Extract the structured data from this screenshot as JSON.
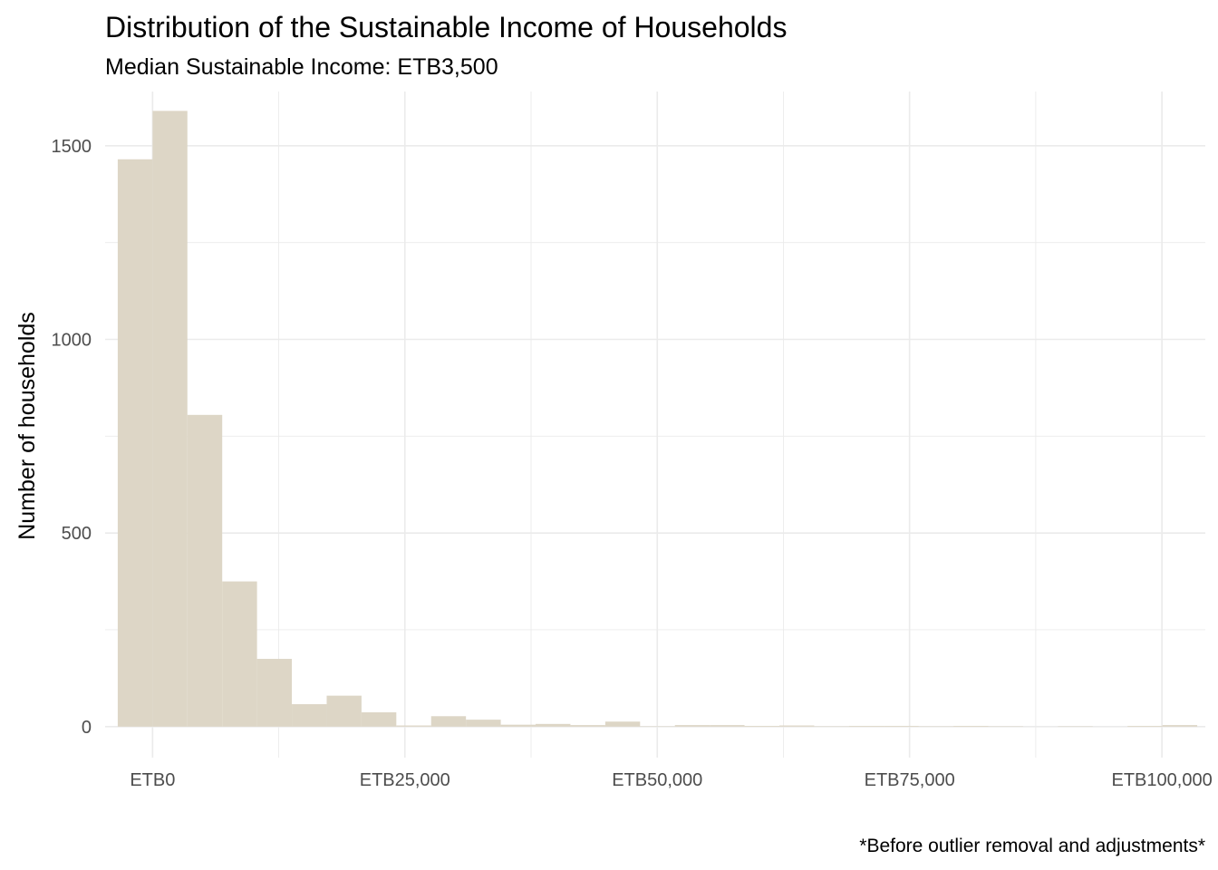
{
  "chart_data": {
    "type": "bar",
    "title": "Distribution of the Sustainable Income of Households",
    "subtitle": "Median Sustainable Income: ETB3,500",
    "caption": "*Before outlier removal and adjustments*",
    "xlabel": "",
    "ylabel": "Number of households",
    "bar_color": "#ddd6c6",
    "bin_width": 3450,
    "xlim": [
      -4700,
      104300
    ],
    "ylim": [
      -80,
      1640
    ],
    "x_ticks": [
      {
        "value": 0,
        "label": "ETB0"
      },
      {
        "value": 25000,
        "label": "ETB25,000"
      },
      {
        "value": 50000,
        "label": "ETB50,000"
      },
      {
        "value": 75000,
        "label": "ETB75,000"
      },
      {
        "value": 100000,
        "label": "ETB100,000"
      }
    ],
    "y_ticks": [
      {
        "value": 0,
        "label": "0"
      },
      {
        "value": 500,
        "label": "500"
      },
      {
        "value": 1000,
        "label": "1000"
      },
      {
        "value": 1500,
        "label": "1500"
      }
    ],
    "bins": [
      {
        "x": -1725,
        "count": 1465
      },
      {
        "x": 1725,
        "count": 1590
      },
      {
        "x": 5175,
        "count": 805
      },
      {
        "x": 8625,
        "count": 375
      },
      {
        "x": 12075,
        "count": 175
      },
      {
        "x": 15525,
        "count": 58
      },
      {
        "x": 18975,
        "count": 80
      },
      {
        "x": 22425,
        "count": 37
      },
      {
        "x": 25875,
        "count": 3
      },
      {
        "x": 29325,
        "count": 27
      },
      {
        "x": 32775,
        "count": 18
      },
      {
        "x": 36225,
        "count": 5
      },
      {
        "x": 39675,
        "count": 7
      },
      {
        "x": 43125,
        "count": 4
      },
      {
        "x": 46575,
        "count": 13
      },
      {
        "x": 50025,
        "count": 1
      },
      {
        "x": 53475,
        "count": 4
      },
      {
        "x": 56925,
        "count": 4
      },
      {
        "x": 60375,
        "count": 2
      },
      {
        "x": 63825,
        "count": 3
      },
      {
        "x": 67275,
        "count": 1
      },
      {
        "x": 70725,
        "count": 2
      },
      {
        "x": 74175,
        "count": 2
      },
      {
        "x": 77625,
        "count": 1
      },
      {
        "x": 81075,
        "count": 2
      },
      {
        "x": 84525,
        "count": 1
      },
      {
        "x": 87975,
        "count": 0
      },
      {
        "x": 91425,
        "count": 1
      },
      {
        "x": 94875,
        "count": 0
      },
      {
        "x": 98325,
        "count": 2
      },
      {
        "x": 101775,
        "count": 4
      }
    ],
    "grid": true,
    "legend": "none"
  }
}
